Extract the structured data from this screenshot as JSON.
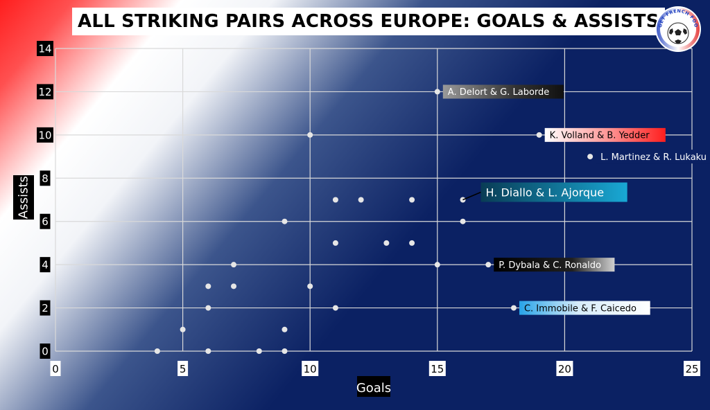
{
  "title": "ALL STRIKING PAIRS ACROSS EUROPE: GOALS & ASSISTS",
  "logo_text": "GET FRENCH FOOTBALL NEWS",
  "colors": {
    "background_navy": "#0b2163",
    "flag_red": "#ff1e1e",
    "flag_white": "#ffffff",
    "grid": "#d9d9d9",
    "point": "#e6e6e6"
  },
  "chart_data": {
    "type": "scatter",
    "title": "ALL STRIKING PAIRS ACROSS EUROPE: GOALS & ASSISTS",
    "xlabel": "Goals",
    "ylabel": "Assists",
    "xlim": [
      0,
      25
    ],
    "ylim": [
      0,
      14
    ],
    "xticks": [
      0,
      5,
      10,
      15,
      20,
      25
    ],
    "yticks": [
      0,
      2,
      4,
      6,
      8,
      10,
      12,
      14
    ],
    "grid": true,
    "points": [
      {
        "x": 4,
        "y": 0
      },
      {
        "x": 5,
        "y": 1
      },
      {
        "x": 6,
        "y": 0
      },
      {
        "x": 6,
        "y": 2
      },
      {
        "x": 6,
        "y": 3
      },
      {
        "x": 7,
        "y": 3
      },
      {
        "x": 7,
        "y": 4
      },
      {
        "x": 8,
        "y": 0
      },
      {
        "x": 9,
        "y": 0
      },
      {
        "x": 9,
        "y": 1
      },
      {
        "x": 9,
        "y": 6
      },
      {
        "x": 10,
        "y": 3
      },
      {
        "x": 10,
        "y": 10
      },
      {
        "x": 11,
        "y": 2
      },
      {
        "x": 11,
        "y": 5
      },
      {
        "x": 11,
        "y": 7
      },
      {
        "x": 12,
        "y": 7
      },
      {
        "x": 13,
        "y": 5
      },
      {
        "x": 14,
        "y": 5
      },
      {
        "x": 14,
        "y": 7
      },
      {
        "x": 15,
        "y": 4
      },
      {
        "x": 15,
        "y": 12
      },
      {
        "x": 16,
        "y": 6
      },
      {
        "x": 16,
        "y": 7
      },
      {
        "x": 17,
        "y": 4
      },
      {
        "x": 18,
        "y": 2
      },
      {
        "x": 19,
        "y": 10
      },
      {
        "x": 21,
        "y": 9
      }
    ],
    "annotations": [
      {
        "x": 15,
        "y": 12,
        "text": "A. Delort & G. Laborde",
        "style": "grey"
      },
      {
        "x": 19,
        "y": 10,
        "text": "K. Volland & B. Yedder",
        "style": "red"
      },
      {
        "x": 21,
        "y": 9,
        "text": "L. Martinez & R. Lukaku",
        "style": "navy"
      },
      {
        "x": 16,
        "y": 7,
        "text": "H. Diallo & L. Ajorque",
        "style": "teal"
      },
      {
        "x": 17,
        "y": 4,
        "text": "P. Dybala & C. Ronaldo",
        "style": "black"
      },
      {
        "x": 18,
        "y": 2,
        "text": "C. Immobile & F. Caicedo",
        "style": "lightblue"
      }
    ]
  }
}
